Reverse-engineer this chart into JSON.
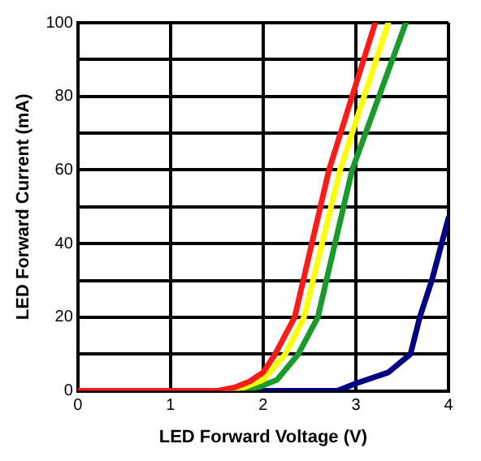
{
  "chart_data": {
    "type": "line",
    "xlabel": "LED Forward Voltage (V)",
    "ylabel": "LED Forward Current (mA)",
    "xlim": [
      0,
      4
    ],
    "xticks": [
      0,
      1,
      2,
      3,
      4
    ],
    "ylim": [
      0,
      100
    ],
    "yticks": [
      0,
      {
        "value": 10,
        "label": null
      },
      20,
      {
        "value": 30,
        "label": null
      },
      40,
      {
        "value": 50,
        "label": null
      },
      60,
      {
        "value": 70,
        "label": null
      },
      80,
      {
        "value": 90,
        "label": null
      },
      100
    ],
    "grid": true,
    "legend": false,
    "marker": "none",
    "line_style": "solid",
    "series": [
      {
        "color": "#ff1a1a",
        "x": [
          0,
          1,
          1.5,
          1.7,
          1.85,
          2.0,
          2.13,
          2.34,
          2.71,
          3.21
        ],
        "values": [
          0,
          0,
          0,
          1,
          2.5,
          5,
          10,
          20,
          60,
          100
        ]
      },
      {
        "color": "#ffff00",
        "x": [
          1.6,
          1.8,
          2.0,
          2.24,
          2.44,
          2.83,
          3.35
        ],
        "values": [
          0,
          1,
          3,
          10,
          20,
          60,
          100
        ]
      },
      {
        "color": "#1a9a2a",
        "x": [
          1.8,
          2.0,
          2.15,
          2.38,
          2.59,
          2.96,
          3.54
        ],
        "values": [
          0,
          1.5,
          3,
          10,
          20,
          60,
          100
        ]
      },
      {
        "color": "#000080",
        "x": [
          2,
          2.8,
          3.0,
          3.35,
          3.59,
          3.69,
          3.82,
          4.0
        ],
        "values": [
          0,
          0,
          2,
          5,
          10,
          20,
          30,
          47
        ]
      }
    ]
  }
}
